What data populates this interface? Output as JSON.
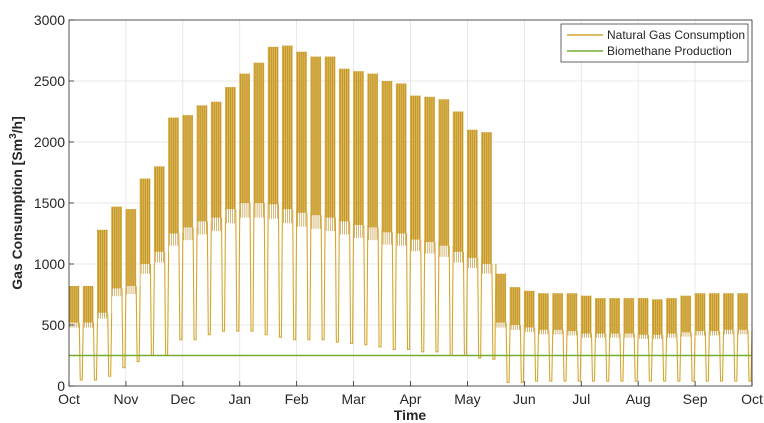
{
  "chart_data": {
    "type": "line",
    "xlabel": "Time",
    "ylabel": "Gas Consumption [Sm³/h]",
    "ylabel_parts": {
      "pre": "Gas Consumption [Sm",
      "sup": "3",
      "post": "/h]"
    },
    "ylim": [
      0,
      3000
    ],
    "yticks": [
      0,
      500,
      1000,
      1500,
      2000,
      2500,
      3000
    ],
    "x_range": [
      "Oct",
      "Oct"
    ],
    "xticks": [
      "Oct",
      "Nov",
      "Dec",
      "Jan",
      "Feb",
      "Mar",
      "Apr",
      "May",
      "Jun",
      "Jul",
      "Aug",
      "Sep",
      "Oct"
    ],
    "grid": true,
    "legend_position": "top-right",
    "series": [
      {
        "name": "Natural Gas Consumption",
        "color": "#d4a732",
        "weekly_envelope": {
          "week_start_month": [
            0,
            0.25,
            0.5,
            0.75,
            1.0,
            1.25,
            1.5,
            1.75,
            2.0,
            2.25,
            2.5,
            2.75,
            3.0,
            3.25,
            3.5,
            3.75,
            4.0,
            4.25,
            4.5,
            4.75,
            5.0,
            5.25,
            5.5,
            5.75,
            6.0,
            6.25,
            6.5,
            6.75,
            7.0,
            7.25,
            7.5,
            7.75,
            8.0,
            8.25,
            8.5,
            8.75,
            9.0,
            9.25,
            9.5,
            9.75,
            10.0,
            10.25,
            10.5,
            10.75,
            11.0,
            11.25,
            11.5,
            11.75
          ],
          "weekday_peak": [
            820,
            820,
            1280,
            1470,
            1450,
            1700,
            1800,
            2200,
            2220,
            2300,
            2330,
            2450,
            2560,
            2650,
            2780,
            2790,
            2740,
            2700,
            2700,
            2600,
            2580,
            2560,
            2500,
            2480,
            2380,
            2370,
            2350,
            2250,
            2100,
            2080,
            920,
            810,
            780,
            760,
            760,
            760,
            740,
            720,
            720,
            720,
            720,
            710,
            720,
            740,
            760,
            760,
            760,
            760
          ],
          "weekday_floor": [
            520,
            520,
            600,
            800,
            820,
            1000,
            1100,
            1250,
            1300,
            1350,
            1380,
            1450,
            1500,
            1500,
            1490,
            1450,
            1420,
            1400,
            1380,
            1350,
            1320,
            1300,
            1260,
            1250,
            1200,
            1180,
            1150,
            1100,
            1050,
            1000,
            520,
            500,
            480,
            460,
            460,
            450,
            430,
            430,
            430,
            430,
            420,
            420,
            430,
            440,
            450,
            450,
            460,
            460
          ],
          "weekend_low": [
            50,
            50,
            80,
            150,
            200,
            250,
            250,
            380,
            380,
            420,
            450,
            450,
            450,
            420,
            400,
            380,
            380,
            380,
            360,
            350,
            340,
            320,
            300,
            300,
            280,
            280,
            250,
            250,
            230,
            220,
            30,
            30,
            40,
            40,
            40,
            40,
            40,
            40,
            40,
            40,
            40,
            40,
            40,
            40,
            40,
            40,
            40,
            40
          ]
        }
      },
      {
        "name": "Biomethane Production",
        "color": "#77ac30",
        "values": [
          250,
          250
        ],
        "x": [
          "Oct",
          "Oct"
        ]
      }
    ]
  }
}
